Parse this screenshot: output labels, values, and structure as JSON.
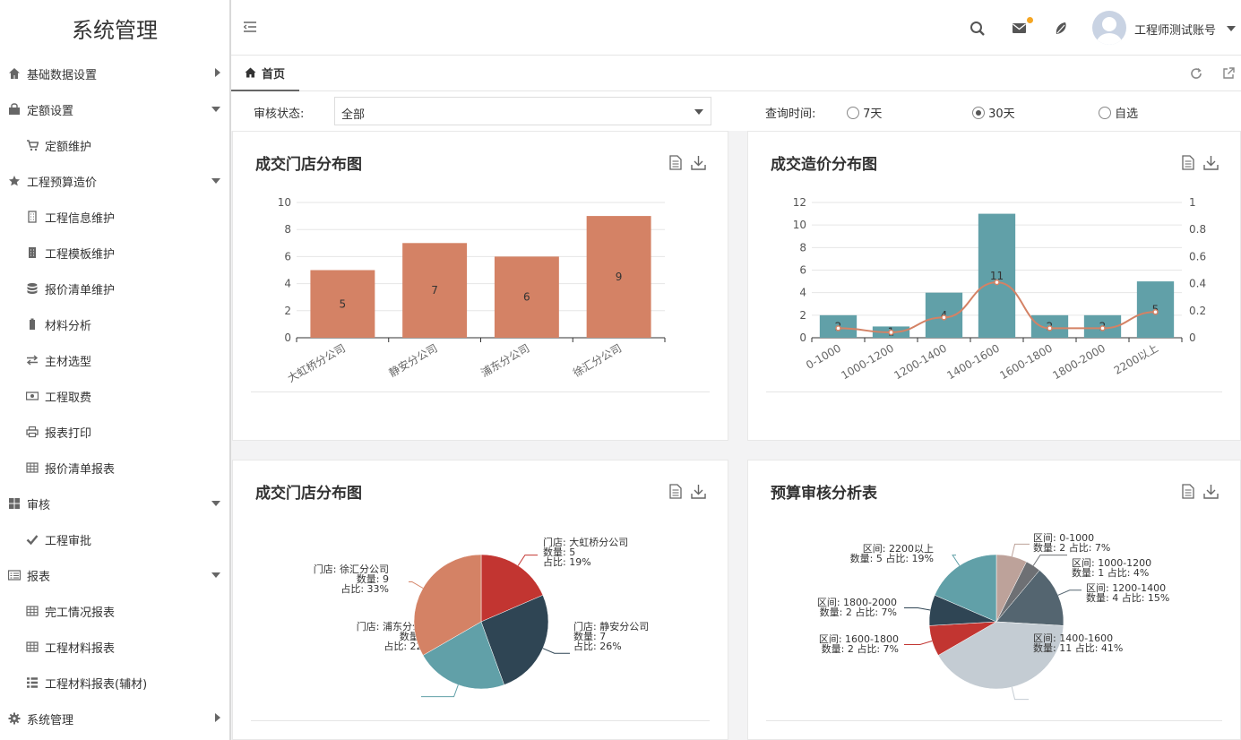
{
  "app": {
    "title": "系统管理"
  },
  "sidebar": {
    "items": [
      {
        "label": "基础数据设置",
        "icon": "home-icon",
        "level": 1,
        "arrow": "right"
      },
      {
        "label": "定额设置",
        "icon": "bag-icon",
        "level": 1,
        "arrow": "down"
      },
      {
        "label": "定额维护",
        "icon": "cart-icon",
        "level": 2
      },
      {
        "label": "工程预算造价",
        "icon": "star-icon",
        "level": 1,
        "arrow": "down"
      },
      {
        "label": "工程信息维护",
        "icon": "building-icon",
        "level": 2
      },
      {
        "label": "工程模板维护",
        "icon": "building-filled-icon",
        "level": 2
      },
      {
        "label": "报价清单维护",
        "icon": "database-icon",
        "level": 2
      },
      {
        "label": "材料分析",
        "icon": "battery-icon",
        "level": 2
      },
      {
        "label": "主材选型",
        "icon": "exchange-icon",
        "level": 2
      },
      {
        "label": "工程取费",
        "icon": "money-icon",
        "level": 2
      },
      {
        "label": "报表打印",
        "icon": "print-icon",
        "level": 2
      },
      {
        "label": "报价清单报表",
        "icon": "table-icon",
        "level": 2
      },
      {
        "label": "审核",
        "icon": "grid-icon",
        "level": 1,
        "arrow": "down"
      },
      {
        "label": "工程审批",
        "icon": "check-icon",
        "level": 2
      },
      {
        "label": "报表",
        "icon": "list-card-icon",
        "level": 1,
        "arrow": "down"
      },
      {
        "label": "完工情况报表",
        "icon": "table-icon",
        "level": 2
      },
      {
        "label": "工程材料报表",
        "icon": "table-icon",
        "level": 2
      },
      {
        "label": "工程材料报表(辅材)",
        "icon": "list-icon",
        "level": 2
      },
      {
        "label": "系统管理",
        "icon": "gear-icon",
        "level": 1,
        "arrow": "right"
      }
    ]
  },
  "header": {
    "username": "工程师测试账号"
  },
  "tabs": {
    "home": "首页"
  },
  "filter": {
    "status_label": "审核状态:",
    "status_value": "全部",
    "time_label": "查询时间:",
    "options": [
      "7天",
      "30天",
      "自选"
    ],
    "selected": "30天"
  },
  "panels": {
    "p1_title": "成交门店分布图",
    "p2_title": "成交造价分布图",
    "p3_title": "成交门店分布图",
    "p4_title": "预算审核分析表"
  },
  "chart_data": [
    {
      "type": "bar",
      "categories": [
        "大虹桥分公司",
        "静安分公司",
        "浦东分公司",
        "徐汇分公司"
      ],
      "values": [
        5,
        7,
        6,
        9
      ],
      "ylim": [
        0,
        10
      ],
      "yticks": [
        0,
        2,
        4,
        6,
        8,
        10
      ],
      "color": "#d48265"
    },
    {
      "type": "bar",
      "categories": [
        "0-1000",
        "1000-1200",
        "1200-1400",
        "1400-1600",
        "1600-1800",
        "1800-2000",
        "2200以上"
      ],
      "values": [
        2,
        1,
        4,
        11,
        2,
        2,
        5
      ],
      "line": [
        0.07,
        0.04,
        0.15,
        0.41,
        0.07,
        0.07,
        0.19
      ],
      "ylim": [
        0,
        12
      ],
      "yticks": [
        0,
        2,
        4,
        6,
        8,
        10,
        12
      ],
      "y2lim": [
        0,
        1
      ],
      "y2ticks": [
        "0",
        "0.2",
        "0.4",
        "0.6",
        "0.8",
        "1"
      ],
      "color": "#61a0a8",
      "line_color": "#d48265"
    },
    {
      "type": "pie",
      "slices": [
        {
          "name": "大虹桥分公司",
          "value": 5,
          "pct": "19%",
          "color": "#c23531",
          "label": [
            "门店: 大虹桥分公司",
            "数量: 5",
            "占比: 19%"
          ]
        },
        {
          "name": "静安分公司",
          "value": 7,
          "pct": "26%",
          "color": "#2f4554",
          "label": [
            "门店: 静安分公司",
            "数量: 7",
            "占比: 26%"
          ]
        },
        {
          "name": "浦东分公司",
          "value": 6,
          "pct": "22%",
          "color": "#61a0a8",
          "label": [
            "门店: 浦东分公司",
            "数量: 6",
            "占比: 22%"
          ]
        },
        {
          "name": "徐汇分公司",
          "value": 9,
          "pct": "33%",
          "color": "#d48265",
          "label": [
            "门店: 徐汇分公司",
            "数量: 9",
            "占比: 33%"
          ]
        }
      ]
    },
    {
      "type": "pie",
      "slices": [
        {
          "name": "0-1000",
          "value": 2,
          "pct": "7%",
          "color": "#bda29a",
          "label": [
            "区间: 0-1000",
            "数量: 2 占比: 7%"
          ]
        },
        {
          "name": "1000-1200",
          "value": 1,
          "pct": "4%",
          "color": "#6e7074",
          "label": [
            "区间: 1000-1200",
            "数量: 1 占比: 4%"
          ]
        },
        {
          "name": "1200-1400",
          "value": 4,
          "pct": "15%",
          "color": "#546570",
          "label": [
            "区间: 1200-1400",
            "数量: 4 占比: 15%"
          ]
        },
        {
          "name": "1400-1600",
          "value": 11,
          "pct": "41%",
          "color": "#c4ccd3",
          "label": [
            "区间: 1400-1600",
            "数量: 11 占比: 41%"
          ]
        },
        {
          "name": "1600-1800",
          "value": 2,
          "pct": "7%",
          "color": "#c23531",
          "label": [
            "区间: 1600-1800",
            "数量: 2 占比: 7%"
          ]
        },
        {
          "name": "1800-2000",
          "value": 2,
          "pct": "7%",
          "color": "#2f4554",
          "label": [
            "区间: 1800-2000",
            "数量: 2 占比: 7%"
          ]
        },
        {
          "name": "2200以上",
          "value": 5,
          "pct": "19%",
          "color": "#61a0a8",
          "label": [
            "区间: 2200以上",
            "数量: 5 占比: 19%"
          ]
        }
      ]
    }
  ]
}
